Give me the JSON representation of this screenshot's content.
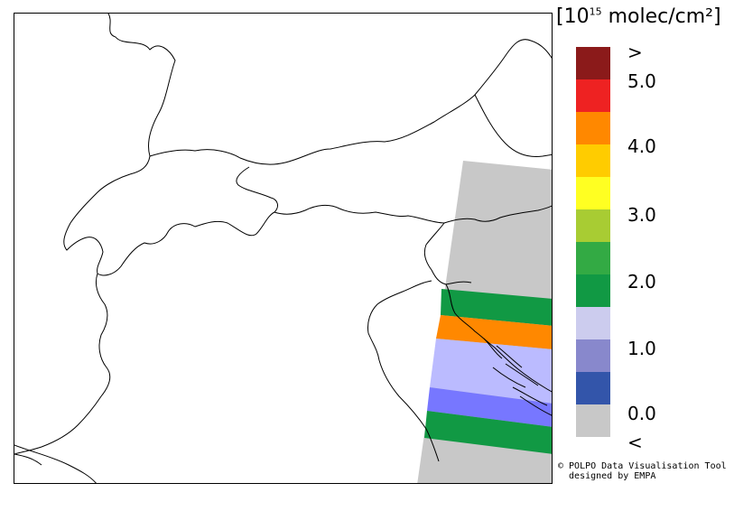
{
  "legend": {
    "units_prefix": "[10",
    "units_exp": "15",
    "units_suffix": " molec/cm²]",
    "labels": [
      ">",
      "5.0",
      "4.0",
      "3.0",
      "2.0",
      "1.0",
      "0.0",
      "<"
    ],
    "colors": [
      "#8b1a1a",
      "#ee2222",
      "#ff8800",
      "#ffcc00",
      "#ffff22",
      "#a8cc33",
      "#33aa44",
      "#119944",
      "#ccccee",
      "#8888cc",
      "#3355aa",
      "#c8c8c8"
    ]
  },
  "swath": {
    "bands": [
      {
        "color": "#119944"
      },
      {
        "color": "#ff8800"
      },
      {
        "color": "#bbbbff"
      },
      {
        "color": "#7777ff"
      },
      {
        "color": "#119944"
      }
    ],
    "nodata_color": "#c8c8c8"
  },
  "credit": {
    "line1": "© POLPO Data Visualisation Tool",
    "line2": "  designed by EMPA"
  }
}
